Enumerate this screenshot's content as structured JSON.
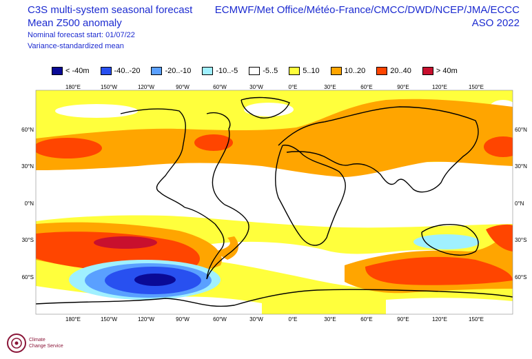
{
  "header": {
    "title_line1": "C3S multi-system seasonal forecast",
    "title_line2": "Mean Z500 anomaly",
    "start_label": "Nominal forecast start: 01/07/22",
    "method_label": "Variance-standardized mean",
    "models": "ECMWF/Met Office/Météo-France/CMCC/DWD/NCEP/JMA/ECCC",
    "period": "ASO 2022"
  },
  "legend": [
    {
      "label": "< -40m",
      "color": "#0a0a96"
    },
    {
      "label": "-40..-20",
      "color": "#2850f0"
    },
    {
      "label": "-20..-10",
      "color": "#5aa0ff"
    },
    {
      "label": "-10..-5",
      "color": "#a0f0ff"
    },
    {
      "label": "-5..5",
      "color": "#ffffff"
    },
    {
      "label": "5..10",
      "color": "#ffff3c"
    },
    {
      "label": "10..20",
      "color": "#ffa500"
    },
    {
      "label": "20..40",
      "color": "#ff4500"
    },
    {
      "label": "> 40m",
      "color": "#c8102e"
    }
  ],
  "axes": {
    "lon_labels": [
      "180°E",
      "150°W",
      "120°W",
      "90°W",
      "60°W",
      "30°W",
      "0°E",
      "30°E",
      "60°E",
      "90°E",
      "120°E",
      "150°E"
    ],
    "lat_labels": [
      "60°N",
      "30°N",
      "0°N",
      "30°S",
      "60°S"
    ]
  },
  "logo": {
    "text_line1": "Climate",
    "text_line2": "Change Service"
  }
}
